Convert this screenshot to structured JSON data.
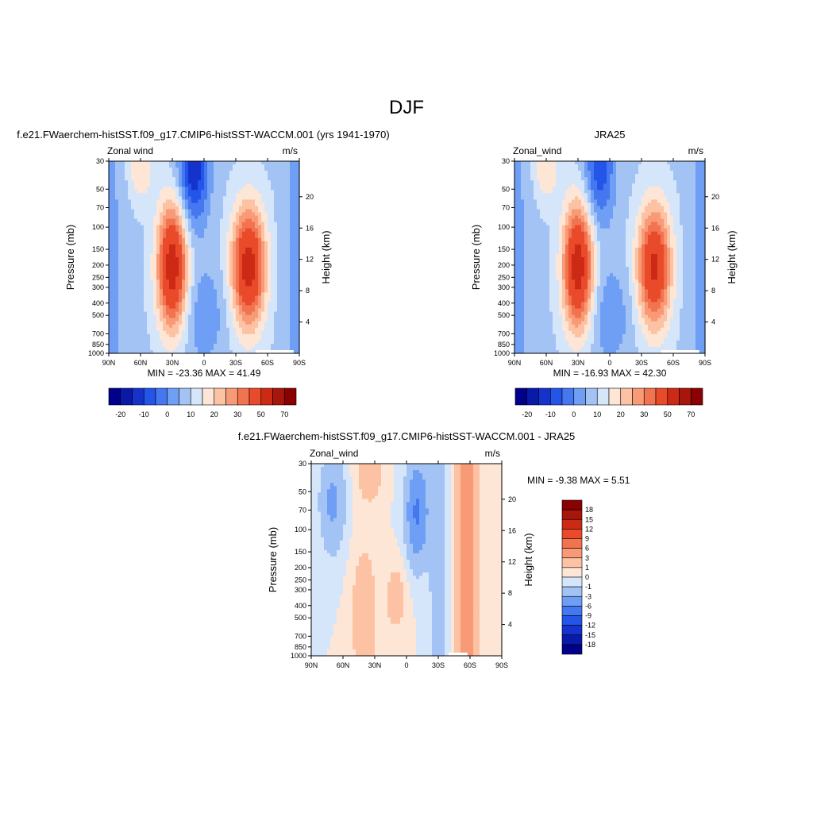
{
  "page": {
    "title": "DJF"
  },
  "colors": {
    "full": [
      "#00008b",
      "#0a1aa8",
      "#1533cc",
      "#2255e8",
      "#4477f0",
      "#6f9ef5",
      "#a3c3f5",
      "#d6e6fa",
      "#fde6d6",
      "#fcc2a3",
      "#f89a76",
      "#f27350",
      "#e84a2a",
      "#cc2a15",
      "#a8150a",
      "#8b0000"
    ],
    "diff": [
      "#00008b",
      "#0a1aa8",
      "#1533cc",
      "#2255e8",
      "#4477f0",
      "#6f9ef5",
      "#a3c3f5",
      "#d6e6fa",
      "#fde6d6",
      "#fcc2a3",
      "#f89a76",
      "#f27350",
      "#e84a2a",
      "#cc2a15",
      "#a8150a",
      "#8b0000"
    ]
  },
  "chart_data": [
    {
      "type": "heatmap",
      "title": "f.e21.FWaerchem-histSST.f09_g17.CMIP6-histSST-WACCM.001 (yrs 1941-1970)",
      "left_label": "Zonal wind",
      "right_label": "m/s",
      "ylabel": "Pressure (mb)",
      "ylabel_right": "Height (km)",
      "x_ticks": [
        "90N",
        "60N",
        "30N",
        "0",
        "30S",
        "60S",
        "90S"
      ],
      "y_ticks": [
        "30",
        "50",
        "70",
        "100",
        "150",
        "200",
        "250",
        "300",
        "400",
        "500",
        "700",
        "850",
        "1000"
      ],
      "y_right_ticks": [
        "20",
        "16",
        "12",
        "8",
        "4"
      ],
      "min": "-23.36",
      "max": "41.49",
      "min_label": "MIN =",
      "max_label": "MAX =",
      "colorbar_labels": [
        "-20",
        "-10",
        "0",
        "10",
        "20",
        "30",
        "50",
        "70"
      ]
    },
    {
      "type": "heatmap",
      "title": "JRA25",
      "left_label": "Zonal_wind",
      "right_label": "m/s",
      "ylabel": "Pressure (mb)",
      "ylabel_right": "Height (km)",
      "x_ticks": [
        "90N",
        "60N",
        "30N",
        "0",
        "30S",
        "60S",
        "90S"
      ],
      "y_ticks": [
        "30",
        "50",
        "70",
        "100",
        "150",
        "200",
        "250",
        "300",
        "400",
        "500",
        "700",
        "850",
        "1000"
      ],
      "y_right_ticks": [
        "20",
        "16",
        "12",
        "8",
        "4"
      ],
      "min": "-16.93",
      "max": "42.30",
      "min_label": "MIN =",
      "max_label": "MAX =",
      "colorbar_labels": [
        "-20",
        "-10",
        "0",
        "10",
        "20",
        "30",
        "50",
        "70"
      ]
    },
    {
      "type": "heatmap",
      "title": "f.e21.FWaerchem-histSST.f09_g17.CMIP6-histSST-WACCM.001 - JRA25",
      "left_label": "Zonal_wind",
      "right_label": "m/s",
      "ylabel": "Pressure (mb)",
      "ylabel_right": "Height (km)",
      "x_ticks": [
        "90N",
        "60N",
        "30N",
        "0",
        "30S",
        "60S",
        "90S"
      ],
      "y_ticks": [
        "30",
        "50",
        "70",
        "100",
        "150",
        "200",
        "250",
        "300",
        "400",
        "500",
        "700",
        "850",
        "1000"
      ],
      "y_right_ticks": [
        "20",
        "16",
        "12",
        "8",
        "4"
      ],
      "min": "-9.38",
      "max": "5.51",
      "min_label": "MIN =",
      "max_label": "MAX =",
      "colorbar_labels": [
        "18",
        "15",
        "12",
        "9",
        "6",
        "3",
        "1",
        "0",
        "-1",
        "-3",
        "-6",
        "-9",
        "-12",
        "-15",
        "-18"
      ]
    }
  ]
}
